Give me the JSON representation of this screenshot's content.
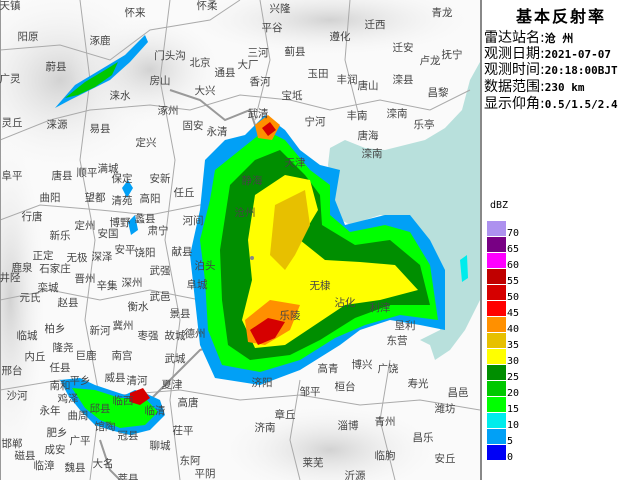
{
  "panel": {
    "title": "基本反射率",
    "rows": [
      {
        "key": "雷达站名:",
        "value": "沧 州"
      },
      {
        "key": "观测日期:",
        "value": "2021-07-07"
      },
      {
        "key": "观测时间:",
        "value": "20:18:00BJT"
      },
      {
        "key": "数据范围:",
        "value": "230 km"
      },
      {
        "key": "显示仰角:",
        "value": "0.5/1.5/2.4"
      }
    ]
  },
  "legend": {
    "unit": "dBZ",
    "items": [
      {
        "label": "70",
        "color": "#ad91ef"
      },
      {
        "label": "65",
        "color": "#780084"
      },
      {
        "label": "60",
        "color": "#ff00ff"
      },
      {
        "label": "55",
        "color": "#c00000"
      },
      {
        "label": "50",
        "color": "#d60000"
      },
      {
        "label": "45",
        "color": "#ff0000"
      },
      {
        "label": "40",
        "color": "#ff9000"
      },
      {
        "label": "35",
        "color": "#e7c000"
      },
      {
        "label": "30",
        "color": "#ffff00"
      },
      {
        "label": "25",
        "color": "#008e00"
      },
      {
        "label": "20",
        "color": "#00c800"
      },
      {
        "label": "15",
        "color": "#00ff00"
      },
      {
        "label": "10",
        "color": "#00ecec"
      },
      {
        "label": "5",
        "color": "#01a0f6"
      },
      {
        "label": "0",
        "color": "#0000f6"
      }
    ]
  },
  "map": {
    "sea_color": "#b8e0dc",
    "cities": [
      "天镇",
      "怀来",
      "怀柔",
      "阳原",
      "涿鹿",
      "门头沟",
      "北京",
      "蔚县",
      "广灵",
      "房山",
      "大兴",
      "通县",
      "涞水",
      "涿州",
      "灵丘",
      "涞源",
      "易县",
      "固安",
      "永清",
      "定兴",
      "兴隆",
      "平谷",
      "迁西",
      "青龙",
      "遵化",
      "三河",
      "蓟县",
      "迁安",
      "抚宁",
      "大厂",
      "卢龙",
      "香河",
      "玉田",
      "丰润",
      "唐山",
      "滦县",
      "昌黎",
      "宝坻",
      "武清",
      "宁河",
      "丰南",
      "滦南",
      "乐亭",
      "唐海",
      "阜平",
      "唐县",
      "顺平",
      "满城",
      "保定",
      "安新",
      "任丘",
      "曲阳",
      "望都",
      "清苑",
      "高阳",
      "行唐",
      "定州",
      "博野",
      "蠡县",
      "河间",
      "新乐",
      "安国",
      "肃宁",
      "正定",
      "无极",
      "深泽",
      "安平",
      "饶阳",
      "献县",
      "鹿泉",
      "石家庄",
      "晋州",
      "辛集",
      "深州",
      "武强",
      "泊头",
      "井陉",
      "栾城",
      "阜城",
      "元氏",
      "赵县",
      "衡水",
      "武邑",
      "景县",
      "临城",
      "柏乡",
      "新河",
      "冀州",
      "枣强",
      "故城",
      "德州",
      "隆尧",
      "内丘",
      "巨鹿",
      "南宫",
      "武城",
      "邢台",
      "任县",
      "平乡",
      "威县",
      "南和",
      "清河",
      "夏津",
      "沙河",
      "鸡泽",
      "临西",
      "邱县",
      "高唐",
      "永年",
      "曲周",
      "馆陶",
      "临清",
      "冠县",
      "茌平",
      "肥乡",
      "广平",
      "邯郸",
      "成安",
      "聊城",
      "磁县",
      "东阿",
      "临漳",
      "魏县",
      "大名",
      "莘县",
      "平阴",
      "东营",
      "博兴",
      "广饶",
      "高青",
      "济阳",
      "寿光",
      "邹平",
      "桓台",
      "昌邑",
      "章丘",
      "潍坊",
      "济南",
      "淄博",
      "青州",
      "昌乐",
      "临朐",
      "安丘",
      "莱芜",
      "沂源",
      "无棣",
      "沾化",
      "利津",
      "垦利",
      "乐陵",
      "静海",
      "沧州",
      "天津",
      "滦南"
    ]
  }
}
